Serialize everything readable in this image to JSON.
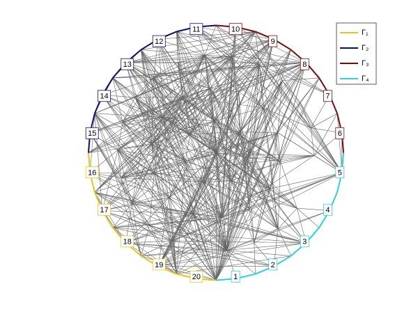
{
  "groups": [
    {
      "name": "Γ₁",
      "color": "#e6c619",
      "segments": [
        "16",
        "17",
        "18",
        "19",
        "20"
      ]
    },
    {
      "name": "Γ₂",
      "color": "#0a0a7a",
      "segments": [
        "11",
        "12",
        "13",
        "14",
        "15"
      ]
    },
    {
      "name": "Γ₃",
      "color": "#7a0a0a",
      "segments": [
        "6",
        "7",
        "8",
        "9",
        "10"
      ]
    },
    {
      "name": "Γ₄",
      "color": "#28d0e8",
      "segments": [
        "1",
        "2",
        "3",
        "4",
        "5"
      ]
    }
  ]
}
